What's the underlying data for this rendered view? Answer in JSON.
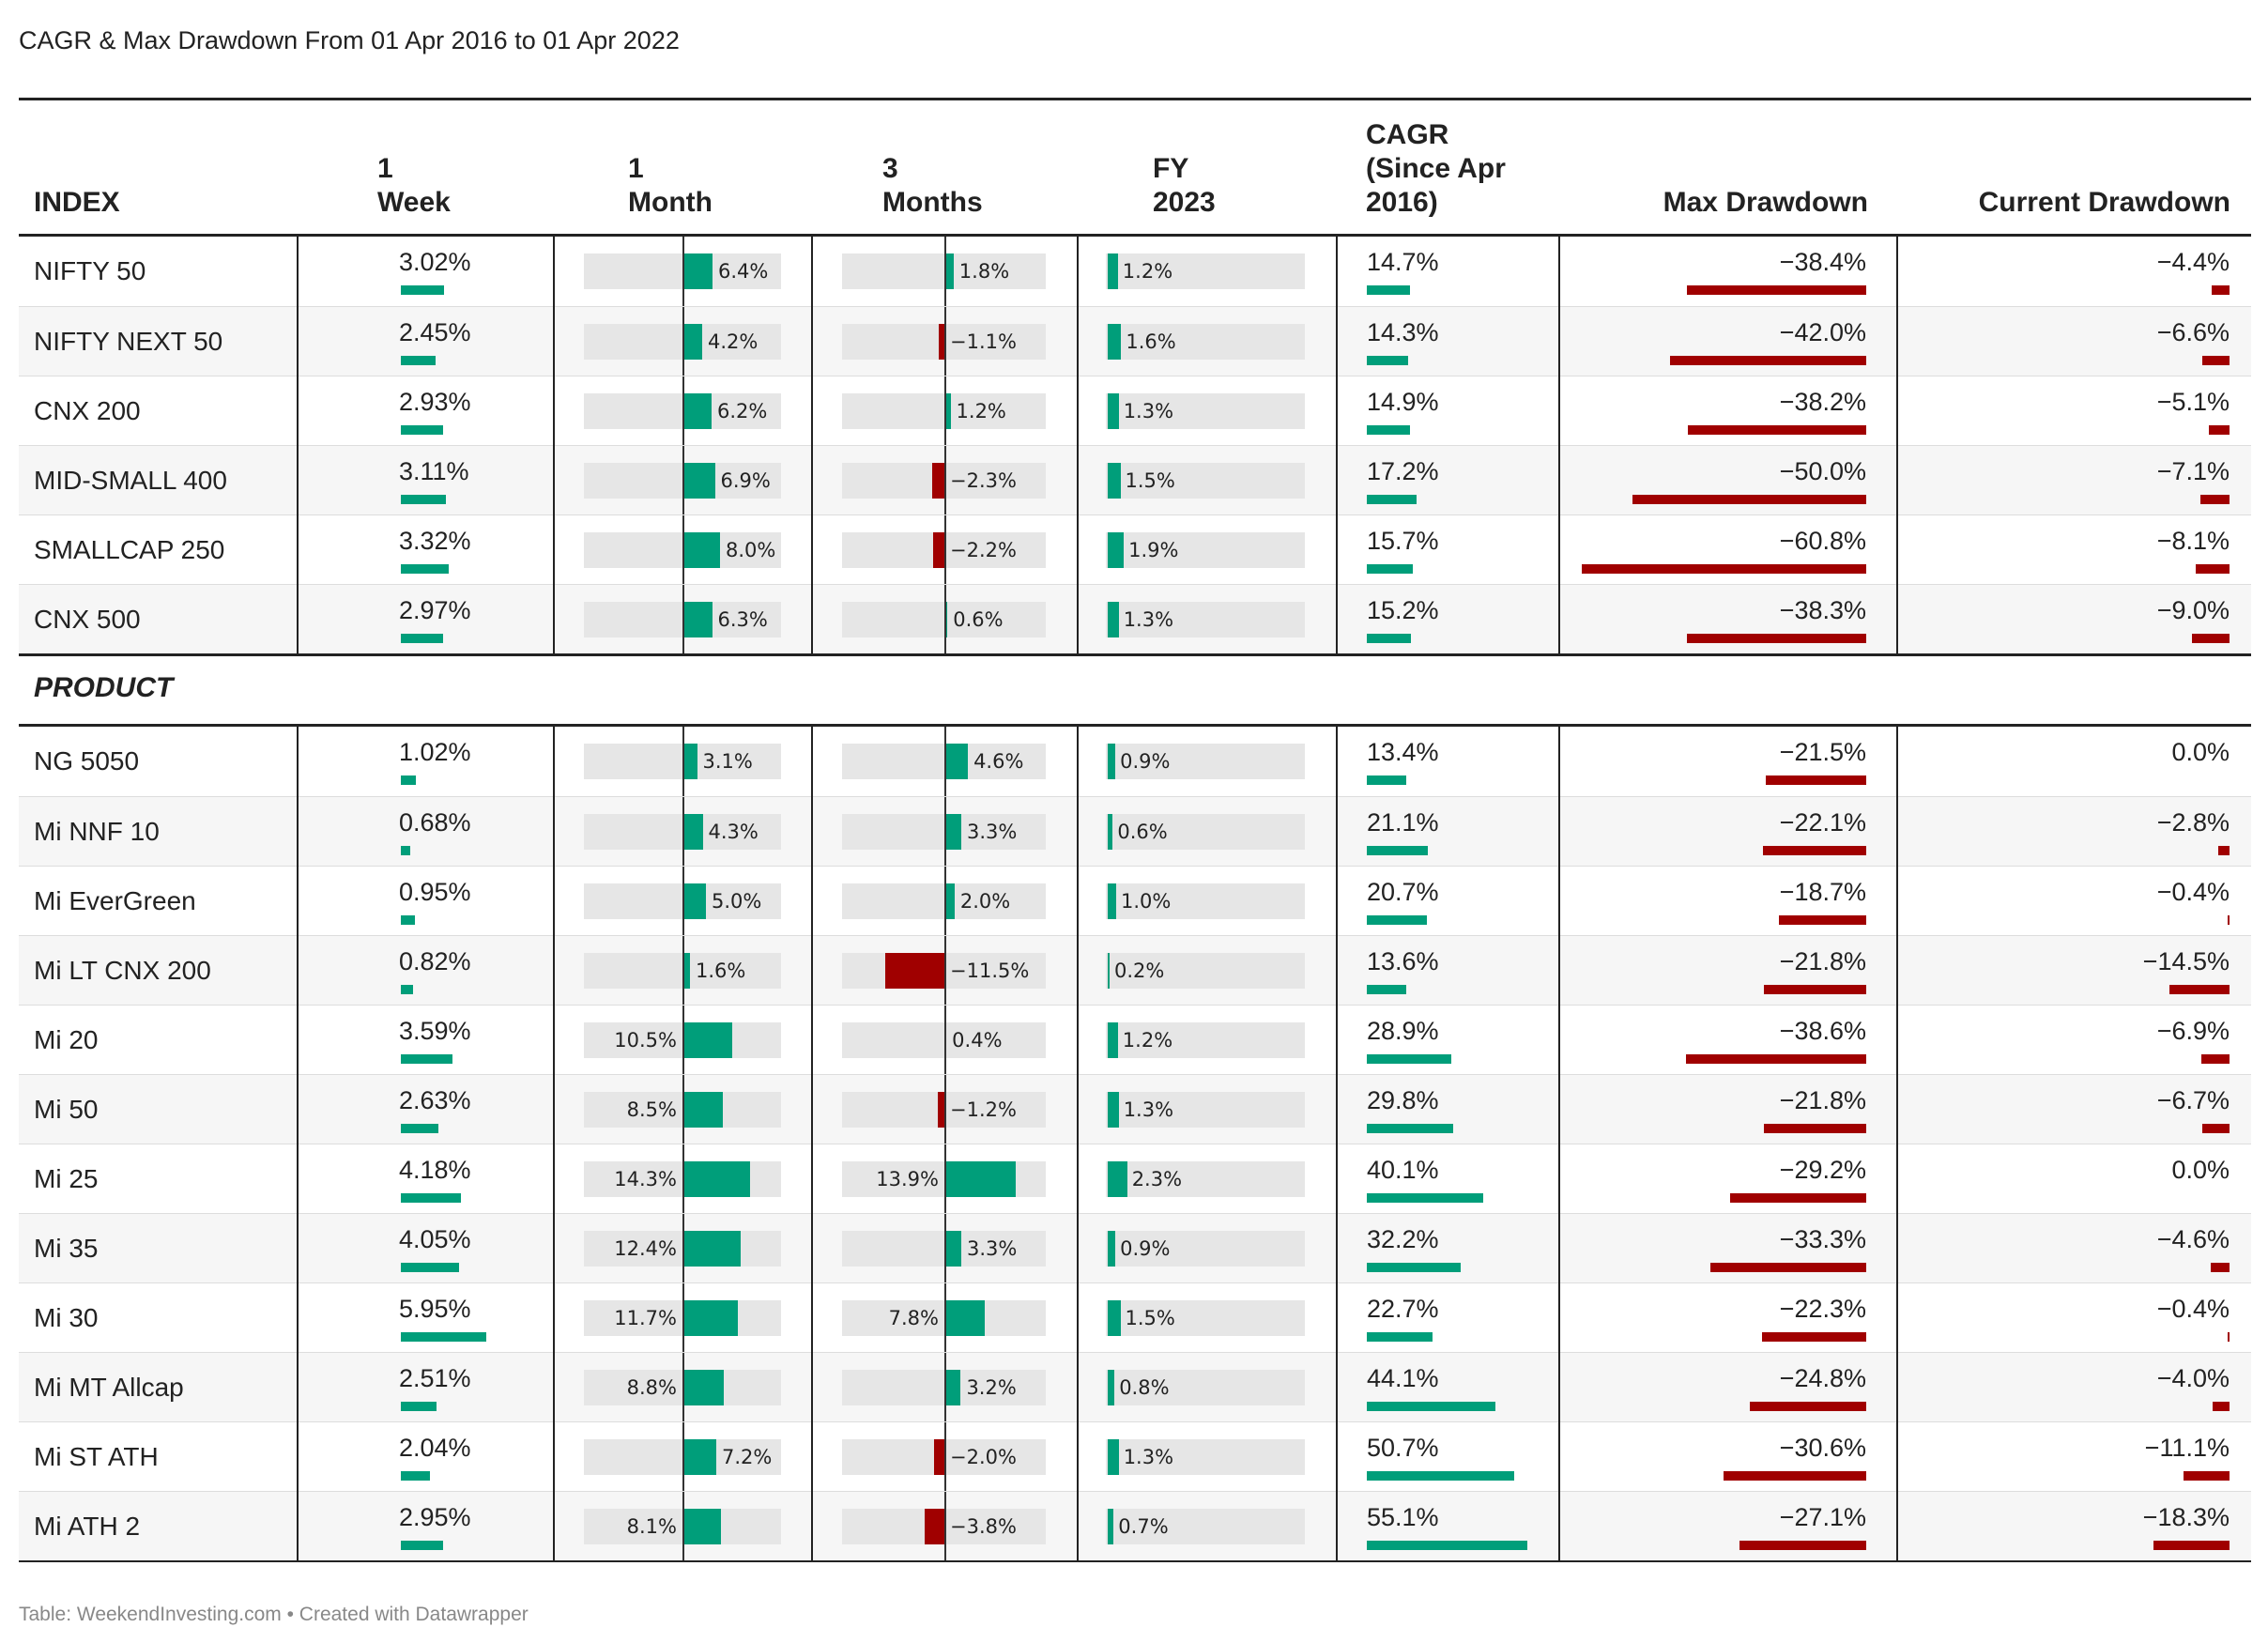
{
  "title": "CAGR & Max Drawdown From 01 Apr 2016 to 01 Apr 2022",
  "footer": "Table: WeekendInvesting.com • Created with Datawrapper",
  "colors": {
    "positive": "#009e7a",
    "negative": "#a00000",
    "track": "#e6e6e6"
  },
  "chart_data": {
    "type": "table",
    "columns": [
      "INDEX",
      "1 Week",
      "1 Month",
      "3 Months",
      "FY 2023",
      "CAGR (Since Apr 2016)",
      "Max Drawdown",
      "Current Drawdown"
    ],
    "header_lines": {
      "cagr": [
        "CAGR",
        "(Since Apr",
        "2016)"
      ]
    },
    "sections": [
      {
        "label": "",
        "rows": [
          {
            "name": "NIFTY 50",
            "w1": "3.02%",
            "m1": "6.4%",
            "m3": "1.8%",
            "fy": "1.2%",
            "cagr": "14.7%",
            "mdd": "−38.4%",
            "cdd": "−4.4%"
          },
          {
            "name": "NIFTY NEXT 50",
            "w1": "2.45%",
            "m1": "4.2%",
            "m3": "−1.1%",
            "fy": "1.6%",
            "cagr": "14.3%",
            "mdd": "−42.0%",
            "cdd": "−6.6%"
          },
          {
            "name": "CNX 200",
            "w1": "2.93%",
            "m1": "6.2%",
            "m3": "1.2%",
            "fy": "1.3%",
            "cagr": "14.9%",
            "mdd": "−38.2%",
            "cdd": "−5.1%"
          },
          {
            "name": "MID-SMALL 400",
            "w1": "3.11%",
            "m1": "6.9%",
            "m3": "−2.3%",
            "fy": "1.5%",
            "cagr": "17.2%",
            "mdd": "−50.0%",
            "cdd": "−7.1%"
          },
          {
            "name": "SMALLCAP 250",
            "w1": "3.32%",
            "m1": "8.0%",
            "m3": "−2.2%",
            "fy": "1.9%",
            "cagr": "15.7%",
            "mdd": "−60.8%",
            "cdd": "−8.1%"
          },
          {
            "name": "CNX 500",
            "w1": "2.97%",
            "m1": "6.3%",
            "m3": "0.6%",
            "fy": "1.3%",
            "cagr": "15.2%",
            "mdd": "−38.3%",
            "cdd": "−9.0%"
          }
        ]
      },
      {
        "label": "PRODUCT",
        "rows": [
          {
            "name": "NG 5050",
            "w1": "1.02%",
            "m1": "3.1%",
            "m3": "4.6%",
            "fy": "0.9%",
            "cagr": "13.4%",
            "mdd": "−21.5%",
            "cdd": "0.0%"
          },
          {
            "name": "Mi NNF 10",
            "w1": "0.68%",
            "m1": "4.3%",
            "m3": "3.3%",
            "fy": "0.6%",
            "cagr": "21.1%",
            "mdd": "−22.1%",
            "cdd": "−2.8%"
          },
          {
            "name": "Mi EverGreen",
            "w1": "0.95%",
            "m1": "5.0%",
            "m3": "2.0%",
            "fy": "1.0%",
            "cagr": "20.7%",
            "mdd": "−18.7%",
            "cdd": "−0.4%"
          },
          {
            "name": "Mi LT CNX 200",
            "w1": "0.82%",
            "m1": "1.6%",
            "m3": "−11.5%",
            "fy": "0.2%",
            "cagr": "13.6%",
            "mdd": "−21.8%",
            "cdd": "−14.5%"
          },
          {
            "name": "Mi 20",
            "w1": "3.59%",
            "m1": "10.5%",
            "m3": "0.4%",
            "fy": "1.2%",
            "cagr": "28.9%",
            "mdd": "−38.6%",
            "cdd": "−6.9%"
          },
          {
            "name": "Mi 50",
            "w1": "2.63%",
            "m1": "8.5%",
            "m3": "−1.2%",
            "fy": "1.3%",
            "cagr": "29.8%",
            "mdd": "−21.8%",
            "cdd": "−6.7%"
          },
          {
            "name": "Mi 25",
            "w1": "4.18%",
            "m1": "14.3%",
            "m3": "13.9%",
            "fy": "2.3%",
            "cagr": "40.1%",
            "mdd": "−29.2%",
            "cdd": "0.0%"
          },
          {
            "name": "Mi 35",
            "w1": "4.05%",
            "m1": "12.4%",
            "m3": "3.3%",
            "fy": "0.9%",
            "cagr": "32.2%",
            "mdd": "−33.3%",
            "cdd": "−4.6%"
          },
          {
            "name": "Mi 30",
            "w1": "5.95%",
            "m1": "11.7%",
            "m3": "7.8%",
            "fy": "1.5%",
            "cagr": "22.7%",
            "mdd": "−22.3%",
            "cdd": "−0.4%"
          },
          {
            "name": "Mi MT Allcap",
            "w1": "2.51%",
            "m1": "8.8%",
            "m3": "3.2%",
            "fy": "0.8%",
            "cagr": "44.1%",
            "mdd": "−24.8%",
            "cdd": "−4.0%"
          },
          {
            "name": "Mi ST ATH",
            "w1": "2.04%",
            "m1": "7.2%",
            "m3": "−2.0%",
            "fy": "1.3%",
            "cagr": "50.7%",
            "mdd": "−30.6%",
            "cdd": "−11.1%"
          },
          {
            "name": "Mi ATH 2",
            "w1": "2.95%",
            "m1": "8.1%",
            "m3": "−3.8%",
            "fy": "0.7%",
            "cagr": "55.1%",
            "mdd": "−27.1%",
            "cdd": "−18.3%"
          }
        ]
      }
    ]
  }
}
